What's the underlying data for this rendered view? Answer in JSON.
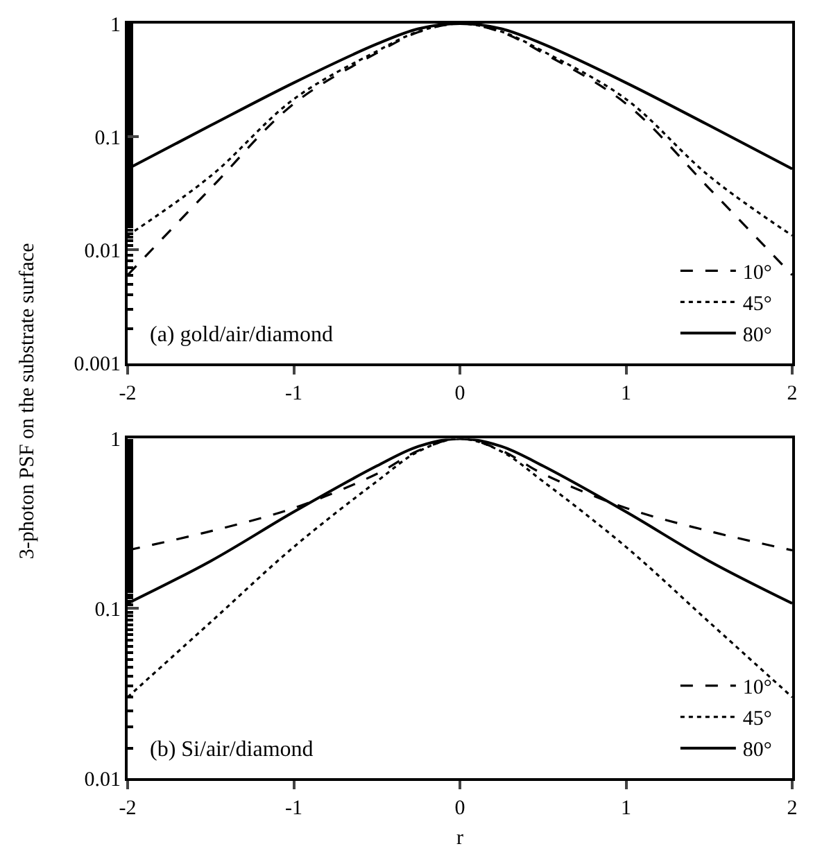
{
  "chart_data": [
    {
      "type": "line",
      "ylabel": "3-photon PSF on the substrate surface",
      "annotations": [
        "(a) gold/air/diamond"
      ],
      "log": "y",
      "xlim": [
        -2,
        2
      ],
      "xticks": [
        -2,
        -1,
        0,
        1,
        2
      ],
      "ylim": [
        0.001,
        1
      ],
      "yticks": [
        0.001,
        0.01,
        0.1,
        1
      ],
      "legend": "bottom right",
      "marker": "none",
      "x": [
        -2,
        -1.5,
        -1,
        -0.5,
        -0.25,
        0,
        0.25,
        0.5,
        1,
        1.5,
        2
      ],
      "series": [
        {
          "name": "10°",
          "color": "#000000",
          "line_style": "dashed",
          "values": [
            0.006,
            0.035,
            0.196,
            0.55,
            0.84,
            1,
            0.84,
            0.55,
            0.196,
            0.035,
            0.006
          ]
        },
        {
          "name": "45°",
          "color": "#000000",
          "line_style": "dotted",
          "values": [
            0.0134,
            0.045,
            0.215,
            0.57,
            0.85,
            1,
            0.85,
            0.57,
            0.215,
            0.045,
            0.0134
          ]
        },
        {
          "name": "80°",
          "color": "#000000",
          "line_style": "solid",
          "values": [
            0.052,
            0.126,
            0.3,
            0.66,
            0.9,
            1,
            0.9,
            0.66,
            0.3,
            0.126,
            0.052
          ]
        }
      ]
    },
    {
      "type": "line",
      "xlabel": "r",
      "annotations": [
        "(b) Si/air/diamond"
      ],
      "log": "y",
      "xlim": [
        -2,
        2
      ],
      "xticks": [
        -2,
        -1,
        0,
        1,
        2
      ],
      "ylim": [
        0.01,
        1
      ],
      "yticks": [
        0.01,
        0.1,
        1
      ],
      "legend": "bottom right",
      "marker": "none",
      "x": [
        -2,
        -1.5,
        -1,
        -0.5,
        -0.25,
        0,
        0.25,
        0.5,
        1,
        1.5,
        2
      ],
      "series": [
        {
          "name": "10°",
          "color": "#000000",
          "line_style": "dashed",
          "values": [
            0.22,
            0.285,
            0.39,
            0.62,
            0.85,
            1,
            0.85,
            0.62,
            0.39,
            0.285,
            0.22
          ]
        },
        {
          "name": "45°",
          "color": "#000000",
          "line_style": "dotted",
          "values": [
            0.03,
            0.083,
            0.23,
            0.56,
            0.84,
            1,
            0.84,
            0.56,
            0.23,
            0.083,
            0.03
          ]
        },
        {
          "name": "80°",
          "color": "#000000",
          "line_style": "solid",
          "values": [
            0.107,
            0.19,
            0.37,
            0.69,
            0.9,
            1,
            0.9,
            0.69,
            0.37,
            0.19,
            0.107
          ]
        }
      ]
    }
  ]
}
